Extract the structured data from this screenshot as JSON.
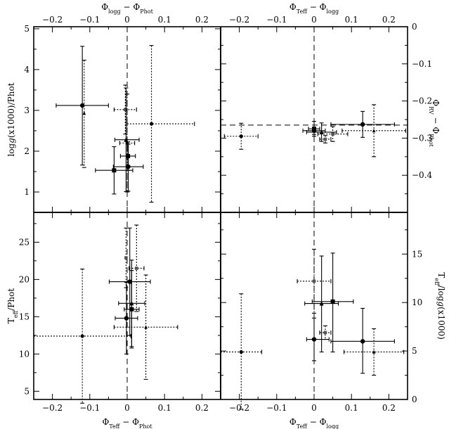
{
  "chart_data": [
    {
      "id": "top-left",
      "type": "scatter",
      "xlabel": "Φlogg − ΦPhot",
      "ylabel": "logg(x1000)/Phot",
      "xlim": [
        -0.25,
        0.25
      ],
      "ylim": [
        0.5,
        5.05
      ],
      "xticks": [
        -0.2,
        -0.1,
        0,
        0.1,
        0.2
      ],
      "xtick_labels": [
        "−0.2",
        "−0.1",
        "0",
        "0.1",
        "0.2"
      ],
      "yticks": [
        1,
        2,
        3,
        4,
        5
      ],
      "ytick_labels": [
        "1",
        "2",
        "3",
        "4",
        "5"
      ],
      "ref_lines": [
        {
          "axis": "x",
          "value": 0
        }
      ],
      "points": [
        {
          "x": -0.12,
          "y": 3.12,
          "xerr": [
            0.07,
            0.07
          ],
          "yerr": [
            1.46,
            1.45
          ],
          "marker": "circle",
          "style": "solid"
        },
        {
          "x": -0.115,
          "y": 2.93,
          "xerr": [
            0.0,
            0.0
          ],
          "yerr": [
            1.33,
            1.3
          ],
          "marker": "triangle",
          "style": "dotted"
        },
        {
          "x": -0.035,
          "y": 1.53,
          "xerr": [
            0.05,
            0.05
          ],
          "yerr": [
            0.58,
            0.58
          ],
          "marker": "square",
          "style": "solid"
        },
        {
          "x": -0.005,
          "y": 3.02,
          "xerr": [
            0.03,
            0.03
          ],
          "yerr": [
            0.6,
            0.6
          ],
          "marker": "square",
          "style": "dotted"
        },
        {
          "x": -0.003,
          "y": 2.28,
          "xerr": [
            0.03,
            0.035
          ],
          "yerr": [
            1.27,
            1.27
          ],
          "marker": "triangle",
          "style": "solid"
        },
        {
          "x": 0.0,
          "y": 2.2,
          "xerr": [
            0.02,
            0.02
          ],
          "yerr": [
            1.2,
            1.2
          ],
          "marker": "triangle",
          "style": "dotted"
        },
        {
          "x": 0.002,
          "y": 1.88,
          "xerr": [
            0.02,
            0.02
          ],
          "yerr": [
            0.35,
            0.35
          ],
          "marker": "square",
          "style": "solid"
        },
        {
          "x": 0.003,
          "y": 1.62,
          "xerr": [
            0.04,
            0.04
          ],
          "yerr": [
            0.6,
            0.55
          ],
          "marker": "circle",
          "style": "solid"
        },
        {
          "x": 0.065,
          "y": 2.67,
          "xerr": [
            0.065,
            0.115
          ],
          "yerr": [
            1.92,
            1.92
          ],
          "marker": "circle",
          "style": "dotted"
        }
      ]
    },
    {
      "id": "top-right",
      "type": "scatter",
      "xlabel": "ΦTeff − Φlogg",
      "ylabel": "ΦRV − ΦPhot",
      "xlim": [
        -0.25,
        0.25
      ],
      "ylim": [
        -0.5,
        0.0
      ],
      "xticks": [
        -0.2,
        -0.1,
        0,
        0.1,
        0.2
      ],
      "xtick_labels": [
        "−0.2",
        "−0.1",
        "0",
        "0.1",
        "0.2"
      ],
      "yticks": [
        0,
        -0.1,
        -0.2,
        -0.3,
        -0.4
      ],
      "ytick_labels": [
        "0",
        "−0.1",
        "−0.2",
        "−0.3",
        "−0.4"
      ],
      "ref_lines": [
        {
          "axis": "x",
          "value": 0
        },
        {
          "axis": "y",
          "value": -0.265
        }
      ],
      "points": [
        {
          "x": -0.195,
          "y": -0.295,
          "xerr": [
            0.045,
            0.045
          ],
          "yerr": [
            0.035,
            0.035
          ],
          "marker": "circle",
          "style": "dotted"
        },
        {
          "x": 0.0,
          "y": -0.275,
          "xerr": [
            0.015,
            0.015
          ],
          "yerr": [
            0.02,
            0.02
          ],
          "marker": "square",
          "style": "solid"
        },
        {
          "x": 0.0,
          "y": -0.28,
          "xerr": [
            0.03,
            0.03
          ],
          "yerr": [
            0.01,
            0.01
          ],
          "marker": "circle",
          "style": "solid"
        },
        {
          "x": 0.02,
          "y": -0.284,
          "xerr": [
            0.04,
            0.04
          ],
          "yerr": [
            0.025,
            0.025
          ],
          "marker": "triangle",
          "style": "solid"
        },
        {
          "x": 0.03,
          "y": -0.303,
          "xerr": [
            0.015,
            0.015
          ],
          "yerr": [
            0.01,
            0.01
          ],
          "marker": "square",
          "style": "dotted"
        },
        {
          "x": 0.05,
          "y": -0.289,
          "xerr": [
            0.04,
            0.04
          ],
          "yerr": [
            0.02,
            0.02
          ],
          "marker": "square",
          "style": "dotted"
        },
        {
          "x": 0.13,
          "y": -0.263,
          "xerr": [
            0.085,
            0.085
          ],
          "yerr": [
            0.035,
            0.035
          ],
          "marker": "circle",
          "style": "solid"
        },
        {
          "x": 0.16,
          "y": -0.28,
          "xerr": [
            0.085,
            0.085
          ],
          "yerr": [
            0.07,
            0.07
          ],
          "marker": "triangle",
          "style": "dotted"
        }
      ]
    },
    {
      "id": "bottom-left",
      "type": "scatter",
      "xlabel": "ΦTeff − ΦPhot",
      "ylabel": "Teff/Phot",
      "xlim": [
        -0.25,
        0.25
      ],
      "ylim": [
        3.9,
        29.0
      ],
      "xticks": [
        -0.2,
        -0.1,
        0,
        0.1,
        0.2
      ],
      "xtick_labels": [
        "−0.2",
        "−0.1",
        "0",
        "0.1",
        "0.2"
      ],
      "yticks": [
        5,
        10,
        15,
        20,
        25
      ],
      "ytick_labels": [
        "5",
        "10",
        "15",
        "20",
        "25"
      ],
      "ref_lines": [
        {
          "axis": "x",
          "value": 0
        }
      ],
      "points": [
        {
          "x": -0.12,
          "y": 12.4,
          "xerr": [
            0.13,
            0.13
          ],
          "yerr": [
            9.0,
            9.0
          ],
          "marker": "circle",
          "style": "dotted"
        },
        {
          "x": -0.003,
          "y": 22.9,
          "xerr": [
            0.0,
            0.0
          ],
          "yerr": [
            4.0,
            4.0
          ],
          "marker": "square",
          "style": "dotted"
        },
        {
          "x": -0.002,
          "y": 14.8,
          "xerr": [
            0.03,
            0.03
          ],
          "yerr": [
            4.8,
            4.8
          ],
          "marker": "circle",
          "style": "solid"
        },
        {
          "x": 0.007,
          "y": 19.7,
          "xerr": [
            0.055,
            0.055
          ],
          "yerr": [
            7.2,
            7.2
          ],
          "marker": "circle",
          "style": "solid"
        },
        {
          "x": 0.012,
          "y": 16.8,
          "xerr": [
            0.035,
            0.035
          ],
          "yerr": [
            5.8,
            5.8
          ],
          "marker": "triangle",
          "style": "solid"
        },
        {
          "x": 0.012,
          "y": 16.0,
          "xerr": [
            0.02,
            0.02
          ],
          "yerr": [
            5.2,
            5.2
          ],
          "marker": "square",
          "style": "solid"
        },
        {
          "x": 0.025,
          "y": 21.5,
          "xerr": [
            0.02,
            0.02
          ],
          "yerr": [
            5.8,
            5.8
          ],
          "marker": "square",
          "style": "dotted"
        },
        {
          "x": 0.05,
          "y": 13.6,
          "xerr": [
            0.085,
            0.085
          ],
          "yerr": [
            7.0,
            7.0
          ],
          "marker": "triangle",
          "style": "dotted"
        }
      ]
    },
    {
      "id": "bottom-right",
      "type": "scatter",
      "xlabel": "ΦTeff − Φlogg",
      "ylabel": "Teff/logg(x1000)",
      "xlim": [
        -0.25,
        0.25
      ],
      "ylim": [
        0.0,
        19.3
      ],
      "xticks": [
        -0.2,
        -0.1,
        0,
        0.1,
        0.2
      ],
      "xtick_labels": [
        "−0.2",
        "−0.1",
        "0",
        "0.1",
        "0.2"
      ],
      "yticks": [
        0,
        5,
        10,
        15
      ],
      "ytick_labels": [
        "0",
        "5",
        "10",
        "15"
      ],
      "ref_lines": [
        {
          "axis": "x",
          "value": 0
        }
      ],
      "points": [
        {
          "x": -0.195,
          "y": 4.9,
          "xerr": [
            0.055,
            0.055
          ],
          "yerr": [
            5.9,
            6.0
          ],
          "marker": "circle",
          "style": "dotted"
        },
        {
          "x": 0.0,
          "y": 12.2,
          "xerr": [
            0.045,
            0.045
          ],
          "yerr": [
            3.3,
            3.3
          ],
          "marker": "square",
          "style": "dotted"
        },
        {
          "x": 0.0,
          "y": 6.2,
          "xerr": [
            0.02,
            0.04
          ],
          "yerr": [
            2.2,
            2.2
          ],
          "marker": "circle",
          "style": "solid"
        },
        {
          "x": 0.02,
          "y": 9.9,
          "xerr": [
            0.045,
            0.045
          ],
          "yerr": [
            5.0,
            4.9
          ],
          "marker": "triangle",
          "style": "solid"
        },
        {
          "x": 0.03,
          "y": 6.9,
          "xerr": [
            0.015,
            0.015
          ],
          "yerr": [
            0.7,
            0.7
          ],
          "marker": "square",
          "style": "dotted"
        },
        {
          "x": 0.05,
          "y": 10.1,
          "xerr": [
            0.055,
            0.055
          ],
          "yerr": [
            5.2,
            5.0
          ],
          "marker": "square",
          "style": "solid"
        },
        {
          "x": 0.13,
          "y": 6.0,
          "xerr": [
            0.085,
            0.085
          ],
          "yerr": [
            3.3,
            3.4
          ],
          "marker": "circle",
          "style": "solid"
        },
        {
          "x": 0.16,
          "y": 4.9,
          "xerr": [
            0.08,
            0.08
          ],
          "yerr": [
            2.4,
            2.4
          ],
          "marker": "triangle",
          "style": "dotted"
        }
      ]
    }
  ]
}
